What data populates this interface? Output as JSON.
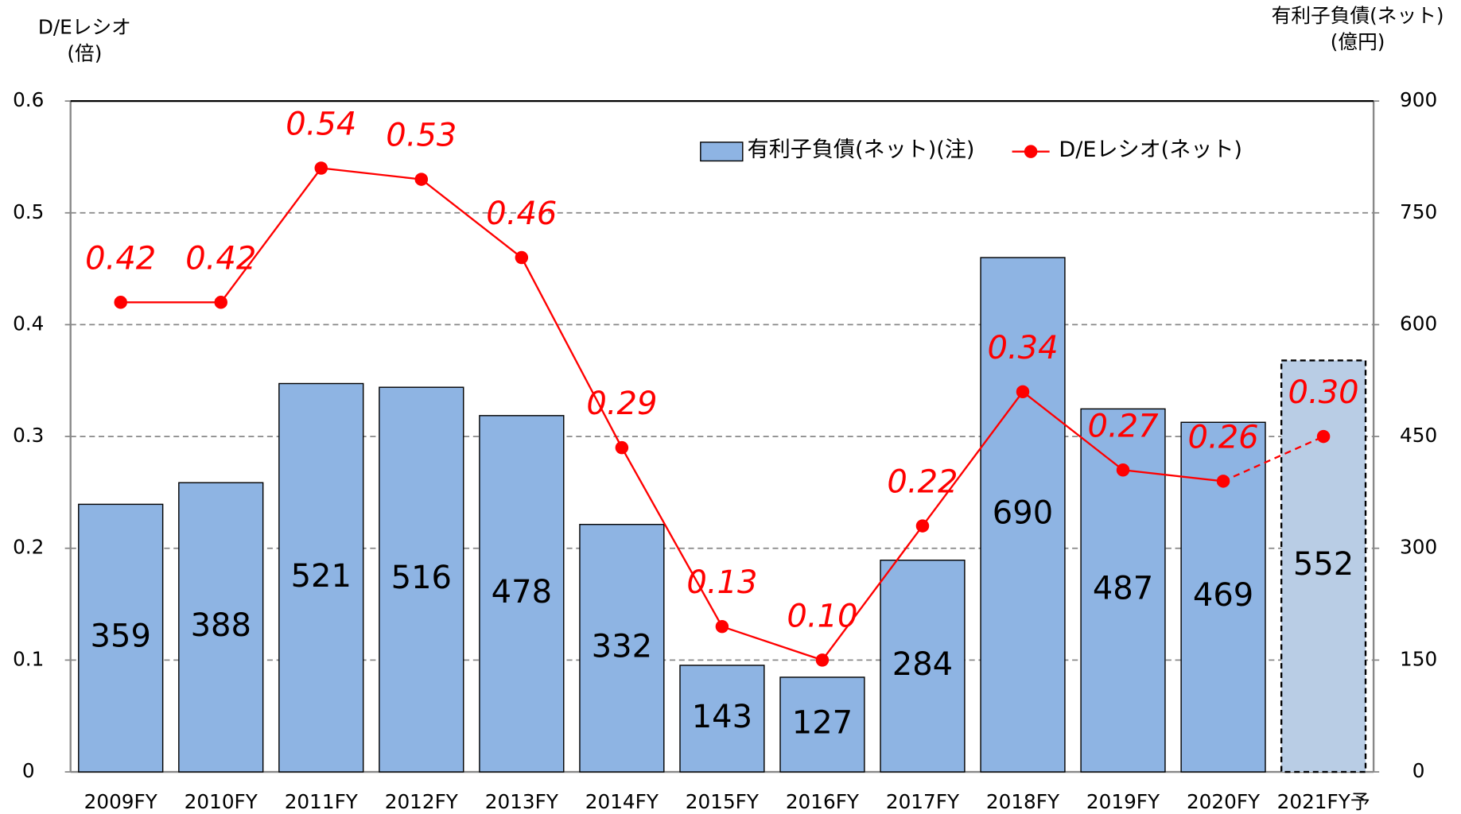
{
  "chart_data": {
    "type": "bar_line",
    "ylabel": [
      "D/Eレシオ",
      "(倍)"
    ],
    "y2label": [
      "有利子負債(ネット)",
      "(億円)"
    ],
    "categories": [
      "2009FY",
      "2010FY",
      "2011FY",
      "2012FY",
      "2013FY",
      "2014FY",
      "2015FY",
      "2016FY",
      "2017FY",
      "2018FY",
      "2019FY",
      "2020FY",
      "2021FY予"
    ],
    "forecast_from": 12,
    "series": [
      {
        "name": "有利子負債(ネット)(注)",
        "type": "bar",
        "axis": "y2",
        "color": "#8eb4e3",
        "forecast_color": "#b9cde5",
        "values": [
          359,
          388,
          521,
          516,
          478,
          332,
          143,
          127,
          284,
          690,
          487,
          469,
          552
        ]
      },
      {
        "name": "D/Eレシオ(ネット)",
        "type": "line",
        "axis": "y",
        "color": "#ff0000",
        "values": [
          0.42,
          0.42,
          0.54,
          0.53,
          0.46,
          0.29,
          0.13,
          0.1,
          0.22,
          0.34,
          0.27,
          0.26,
          0.3
        ],
        "value_labels": [
          "0.42",
          "0.42",
          "0.54",
          "0.53",
          "0.46",
          "0.29",
          "0.13",
          "0.10",
          "0.22",
          "0.34",
          "0.27",
          "0.26",
          "0.30"
        ]
      }
    ],
    "ylim": [
      0,
      0.6
    ],
    "yticks": [
      0,
      0.1,
      0.2,
      0.3,
      0.4,
      0.5,
      0.6
    ],
    "y2lim": [
      0,
      900
    ],
    "y2ticks": [
      0,
      150,
      300,
      450,
      600,
      750,
      900
    ],
    "grid": true
  }
}
